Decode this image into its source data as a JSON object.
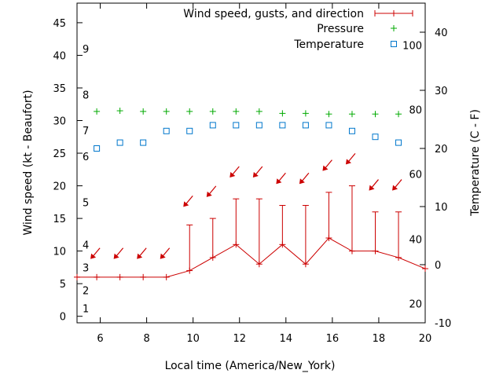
{
  "chart_data": {
    "type": "line",
    "title": "",
    "xlabel": "Local time (America/New_York)",
    "ylabel_left": "Wind speed (kt - Beaufort)",
    "ylabel_right": "Temperature (C - F)",
    "xlim": [
      5,
      20
    ],
    "ylim_left": [
      -1,
      48
    ],
    "ylim_right": [
      -10,
      45
    ],
    "x_ticks": [
      6,
      8,
      10,
      12,
      14,
      16,
      18,
      20
    ],
    "y_ticks_left": [
      0,
      5,
      10,
      15,
      20,
      25,
      30,
      35,
      40,
      45
    ],
    "y_ticks_right": [
      -10,
      0,
      10,
      20,
      30,
      40
    ],
    "beaufort_labels": [
      {
        "label": "1",
        "y": 1.2
      },
      {
        "label": "2",
        "y": 4
      },
      {
        "label": "3",
        "y": 7.5
      },
      {
        "label": "4",
        "y": 11
      },
      {
        "label": "5",
        "y": 17.5
      },
      {
        "label": "6",
        "y": 24.5
      },
      {
        "label": "7",
        "y": 28.5
      },
      {
        "label": "8",
        "y": 34
      },
      {
        "label": "9",
        "y": 41
      }
    ],
    "fahrenheit_labels": [
      {
        "label": "20",
        "value": -6.7
      },
      {
        "label": "40",
        "value": 4.4
      },
      {
        "label": "60",
        "value": 15.6
      },
      {
        "label": "80",
        "value": 26.7
      },
      {
        "label": "100",
        "value": 37.8
      }
    ],
    "legend": {
      "placement": "top-right",
      "wind": "Wind speed, gusts, and direction",
      "pressure": "Pressure",
      "temperature": "Temperature"
    },
    "series": [
      {
        "name": "Wind speed, gusts, and direction",
        "color": "#cc0000",
        "x": [
          5,
          5.85,
          6.85,
          7.85,
          8.85,
          9.85,
          10.85,
          11.85,
          12.85,
          13.85,
          14.85,
          15.85,
          16.85,
          17.85,
          18.85,
          20
        ],
        "y": [
          6,
          6,
          6,
          6,
          6,
          7,
          9,
          11,
          8,
          11,
          8,
          12,
          10,
          10,
          9,
          7.3
        ],
        "gust_x": [
          9.85,
          10.85,
          11.85,
          12.85,
          13.85,
          14.85,
          15.85,
          16.85,
          17.85,
          18.85
        ],
        "gust_y": [
          14,
          15,
          18,
          18,
          17,
          17,
          19,
          20,
          16,
          16
        ],
        "arrow_y": [
          9.5,
          9.5,
          9.5,
          9.5,
          17.5,
          19,
          22,
          22,
          21,
          21,
          23,
          24,
          20,
          20
        ]
      },
      {
        "name": "Pressure",
        "color": "#00aa00",
        "x": [
          5.85,
          6.85,
          7.85,
          8.85,
          9.85,
          10.85,
          11.85,
          12.85,
          13.85,
          14.85,
          15.85,
          16.85,
          17.85,
          18.85
        ],
        "y": [
          31.4,
          31.5,
          31.4,
          31.4,
          31.4,
          31.4,
          31.4,
          31.4,
          31.1,
          31.1,
          31.0,
          31.0,
          31.0,
          31.0
        ]
      },
      {
        "name": "Temperature",
        "color": "#0077cc",
        "x": [
          5.85,
          6.85,
          7.85,
          8.85,
          9.85,
          10.85,
          11.85,
          12.85,
          13.85,
          14.85,
          15.85,
          16.85,
          17.85,
          18.85
        ],
        "y": [
          20,
          21,
          21,
          23,
          23,
          24,
          24,
          24,
          24,
          24,
          24,
          23,
          22,
          21
        ]
      }
    ]
  }
}
